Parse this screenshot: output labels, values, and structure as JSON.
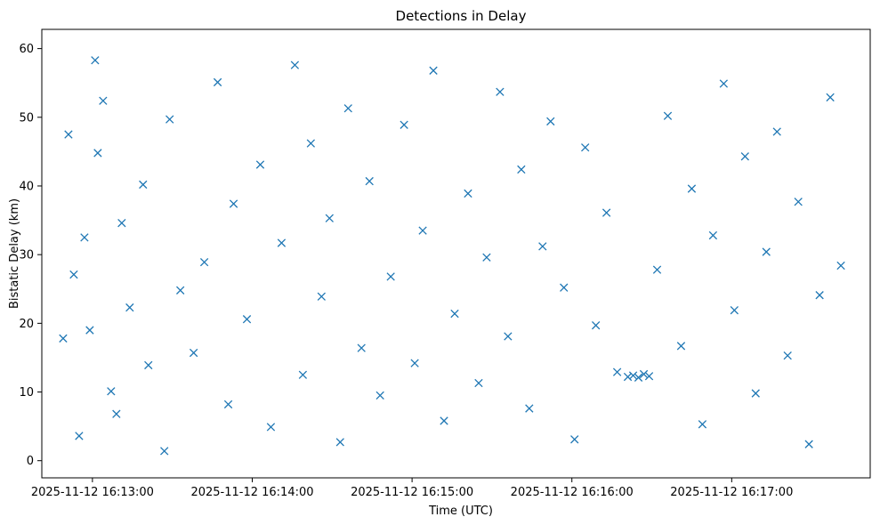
{
  "chart_data": {
    "type": "scatter",
    "title": "Detections in Delay",
    "xlabel": "Time (UTC)",
    "ylabel": "Bistatic Delay (km)",
    "marker": "x",
    "color": "#1f77b4",
    "grid": false,
    "legend": "none",
    "xlim": [
      "2025-11-12T16:12:41Z",
      "2025-11-12T16:17:52Z"
    ],
    "ylim": [
      -2.5,
      62.8
    ],
    "xticks": [
      "2025-11-12 16:13:00",
      "2025-11-12 16:14:00",
      "2025-11-12 16:15:00",
      "2025-11-12 16:16:00",
      "2025-11-12 16:17:00"
    ],
    "yticks": [
      0,
      10,
      20,
      30,
      40,
      50,
      60
    ],
    "points": [
      [
        "2025-11-12T16:12:51Z",
        47.5
      ],
      [
        "2025-11-12T16:12:57Z",
        32.5
      ],
      [
        "2025-11-12T16:12:59Z",
        19.0
      ],
      [
        "2025-11-12T16:13:02Z",
        44.8
      ],
      [
        "2025-11-12T16:12:53Z",
        27.1
      ],
      [
        "2025-11-12T16:12:55Z",
        3.6
      ],
      [
        "2025-11-12T16:13:04Z",
        52.4
      ],
      [
        "2025-11-12T16:13:07Z",
        10.1
      ],
      [
        "2025-11-12T16:12:49Z",
        17.8
      ],
      [
        "2025-11-12T16:13:01Z",
        58.3
      ],
      [
        "2025-11-12T16:13:09Z",
        6.8
      ],
      [
        "2025-11-12T16:13:11Z",
        34.6
      ],
      [
        "2025-11-12T16:13:14Z",
        22.3
      ],
      [
        "2025-11-12T16:13:19Z",
        40.2
      ],
      [
        "2025-11-12T16:13:21Z",
        13.9
      ],
      [
        "2025-11-12T16:13:27Z",
        1.4
      ],
      [
        "2025-11-12T16:13:29Z",
        49.7
      ],
      [
        "2025-11-12T16:13:33Z",
        24.8
      ],
      [
        "2025-11-12T16:13:38Z",
        15.7
      ],
      [
        "2025-11-12T16:13:42Z",
        28.9
      ],
      [
        "2025-11-12T16:13:47Z",
        55.1
      ],
      [
        "2025-11-12T16:13:51Z",
        8.2
      ],
      [
        "2025-11-12T16:13:53Z",
        37.4
      ],
      [
        "2025-11-12T16:13:58Z",
        20.6
      ],
      [
        "2025-11-12T16:14:03Z",
        43.1
      ],
      [
        "2025-11-12T16:14:07Z",
        4.9
      ],
      [
        "2025-11-12T16:14:11Z",
        31.7
      ],
      [
        "2025-11-12T16:14:16Z",
        57.6
      ],
      [
        "2025-11-12T16:14:19Z",
        12.5
      ],
      [
        "2025-11-12T16:14:22Z",
        46.2
      ],
      [
        "2025-11-12T16:14:26Z",
        23.9
      ],
      [
        "2025-11-12T16:14:29Z",
        35.3
      ],
      [
        "2025-11-12T16:14:33Z",
        2.7
      ],
      [
        "2025-11-12T16:14:36Z",
        51.3
      ],
      [
        "2025-11-12T16:14:41Z",
        16.4
      ],
      [
        "2025-11-12T16:14:44Z",
        40.7
      ],
      [
        "2025-11-12T16:14:48Z",
        9.5
      ],
      [
        "2025-11-12T16:14:52Z",
        26.8
      ],
      [
        "2025-11-12T16:14:57Z",
        48.9
      ],
      [
        "2025-11-12T16:15:01Z",
        14.2
      ],
      [
        "2025-11-12T16:15:04Z",
        33.5
      ],
      [
        "2025-11-12T16:15:08Z",
        56.8
      ],
      [
        "2025-11-12T16:15:12Z",
        5.8
      ],
      [
        "2025-11-12T16:15:16Z",
        21.4
      ],
      [
        "2025-11-12T16:15:21Z",
        38.9
      ],
      [
        "2025-11-12T16:15:25Z",
        11.3
      ],
      [
        "2025-11-12T16:15:28Z",
        29.6
      ],
      [
        "2025-11-12T16:15:33Z",
        53.7
      ],
      [
        "2025-11-12T16:15:36Z",
        18.1
      ],
      [
        "2025-11-12T16:15:41Z",
        42.4
      ],
      [
        "2025-11-12T16:15:44Z",
        7.6
      ],
      [
        "2025-11-12T16:15:49Z",
        31.2
      ],
      [
        "2025-11-12T16:15:52Z",
        49.4
      ],
      [
        "2025-11-12T16:15:57Z",
        25.2
      ],
      [
        "2025-11-12T16:16:01Z",
        3.1
      ],
      [
        "2025-11-12T16:16:05Z",
        45.6
      ],
      [
        "2025-11-12T16:16:09Z",
        19.7
      ],
      [
        "2025-11-12T16:16:13Z",
        36.1
      ],
      [
        "2025-11-12T16:16:17Z",
        12.9
      ],
      [
        "2025-11-12T16:16:21Z",
        12.2
      ],
      [
        "2025-11-12T16:16:23Z",
        12.4
      ],
      [
        "2025-11-12T16:16:25Z",
        12.1
      ],
      [
        "2025-11-12T16:16:27Z",
        12.6
      ],
      [
        "2025-11-12T16:16:29Z",
        12.3
      ],
      [
        "2025-11-12T16:16:32Z",
        27.8
      ],
      [
        "2025-11-12T16:16:36Z",
        50.2
      ],
      [
        "2025-11-12T16:16:41Z",
        16.7
      ],
      [
        "2025-11-12T16:16:45Z",
        39.6
      ],
      [
        "2025-11-12T16:16:49Z",
        5.3
      ],
      [
        "2025-11-12T16:16:53Z",
        32.8
      ],
      [
        "2025-11-12T16:16:57Z",
        54.9
      ],
      [
        "2025-11-12T16:17:01Z",
        21.9
      ],
      [
        "2025-11-12T16:17:05Z",
        44.3
      ],
      [
        "2025-11-12T16:17:09Z",
        9.8
      ],
      [
        "2025-11-12T16:17:13Z",
        30.4
      ],
      [
        "2025-11-12T16:17:17Z",
        47.9
      ],
      [
        "2025-11-12T16:17:21Z",
        15.3
      ],
      [
        "2025-11-12T16:17:25Z",
        37.7
      ],
      [
        "2025-11-12T16:17:29Z",
        2.4
      ],
      [
        "2025-11-12T16:17:33Z",
        24.1
      ],
      [
        "2025-11-12T16:17:37Z",
        52.9
      ],
      [
        "2025-11-12T16:17:41Z",
        28.4
      ]
    ]
  }
}
